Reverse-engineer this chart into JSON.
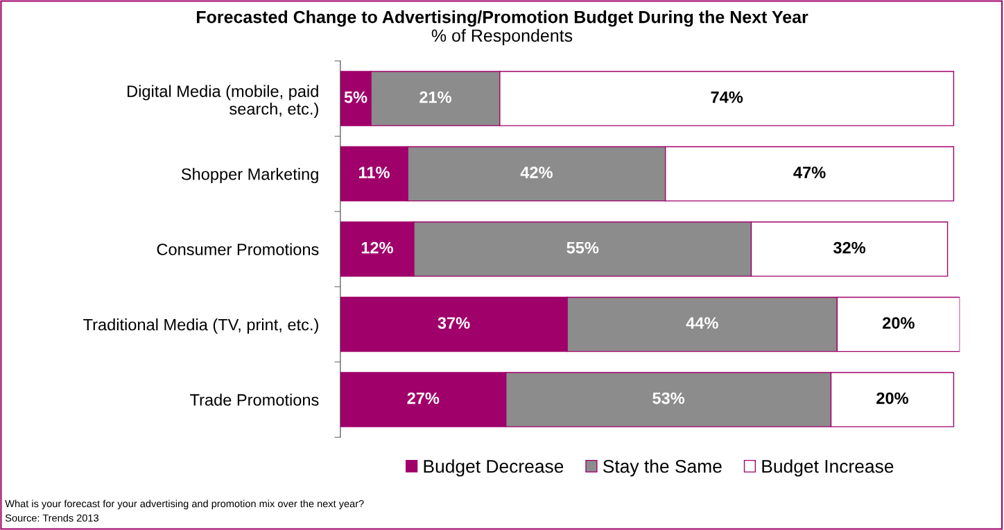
{
  "chart_data": {
    "type": "bar",
    "orientation": "horizontal",
    "stacked": true,
    "title": "Forecasted Change to Advertising/Promotion Budget During the Next Year",
    "subtitle": "% of Respondents",
    "categories": [
      "Digital Media (mobile, paid\nsearch, etc.)",
      "Shopper Marketing",
      "Consumer Promotions",
      "Traditional Media (TV, print, etc.)",
      "Trade Promotions"
    ],
    "series": [
      {
        "name": "Budget Decrease",
        "color": "#a0006a",
        "values": [
          5,
          11,
          12,
          37,
          27
        ],
        "value_labels": [
          "5%",
          "11%",
          "12%",
          "37%",
          "27%"
        ]
      },
      {
        "name": "Stay the Same",
        "color": "#8c8c8c",
        "values": [
          21,
          42,
          55,
          44,
          53
        ],
        "value_labels": [
          "21%",
          "42%",
          "55%",
          "44%",
          "53%"
        ]
      },
      {
        "name": "Budget Increase",
        "color": "#ffffff",
        "values": [
          74,
          47,
          32,
          20,
          20
        ],
        "value_labels": [
          "74%",
          "47%",
          "32%",
          "20%",
          "20%"
        ]
      }
    ],
    "legend": "bottom",
    "grid": false,
    "tick_labels": "y",
    "annotations": [
      "What is your forecast for your advertising and promotion mix over the next year?",
      "Source: Trends 2013"
    ]
  }
}
